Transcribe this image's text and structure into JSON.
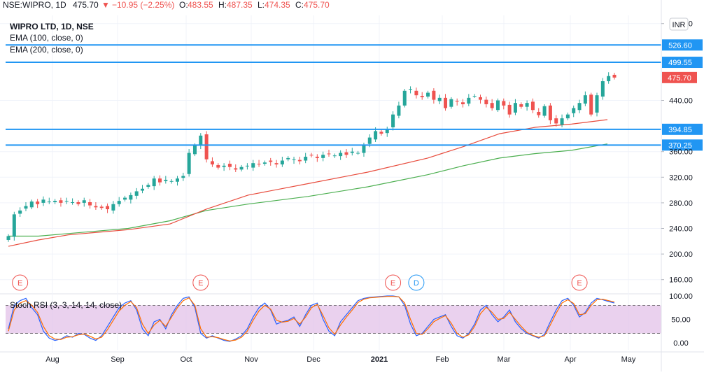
{
  "header": {
    "symbol_line": "NSE:WIPRO, 1D",
    "last": "475.70",
    "change": "−10.95 (−2.25%)",
    "open_label": "O:",
    "open": "483.55",
    "high_label": "H:",
    "high": "487.35",
    "low_label": "L:",
    "low": "474.35",
    "close_label": "C:",
    "close": "475.70"
  },
  "legend": {
    "title": "WIPRO LTD, 1D, NSE",
    "ema100": "EMA (100, close, 0)",
    "ema200": "EMA (200, close, 0)"
  },
  "currency_badge": "INR",
  "oscillator_label": "Stoch RSI (3, 3, 14, 14, close)",
  "colors": {
    "up": "#26a69a",
    "down": "#ef5350",
    "ema100": "#e84c3d",
    "ema200": "#4caf50",
    "hline": "#2196f3",
    "stoch_k": "#2962ff",
    "stoch_d": "#ff6d00",
    "stoch_band": "#e1bee7",
    "event_e": "#ef5350",
    "event_d": "#2196f3"
  },
  "chart_data": [
    {
      "type": "candlestick",
      "y_axis_ticks": [
        "560.00",
        "440.00",
        "360.00",
        "320.00",
        "280.00",
        "240.00",
        "200.00",
        "160.00"
      ],
      "ylim": [
        140,
        575
      ],
      "x_tick_labels": [
        "Aug",
        "Sep",
        "Oct",
        "Nov",
        "Dec",
        "2021",
        "Feb",
        "Mar",
        "Apr",
        "May"
      ],
      "horizontal_levels": [
        {
          "value": 526.6,
          "label": "526.60"
        },
        {
          "value": 499.55,
          "label": "499.55"
        },
        {
          "value": 394.85,
          "label": "394.85"
        },
        {
          "value": 370.25,
          "label": "370.25"
        }
      ],
      "last_price": {
        "value": 475.7,
        "label": "475.70"
      },
      "ohlc_closes_approx": [
        228,
        262,
        268,
        275,
        282,
        278,
        285,
        282,
        283,
        280,
        283,
        281,
        278,
        284,
        276,
        273,
        272,
        270,
        278,
        283,
        288,
        292,
        298,
        302,
        308,
        318,
        312,
        316,
        314,
        318,
        322,
        358,
        370,
        385,
        348,
        340,
        335,
        338,
        336,
        332,
        336,
        338,
        342,
        340,
        343,
        344,
        340,
        346,
        350,
        348,
        345,
        352,
        354,
        350,
        355,
        356,
        354,
        358,
        355,
        360,
        358,
        370,
        382,
        392,
        388,
        395,
        418,
        432,
        455,
        458,
        448,
        445,
        452,
        441,
        444,
        428,
        442,
        438,
        434,
        444,
        447,
        441,
        434,
        428,
        440,
        432,
        418,
        436,
        430,
        436,
        425,
        417,
        431,
        409,
        404,
        412,
        418,
        428,
        436,
        448,
        418,
        448,
        470,
        478,
        475.7
      ],
      "ema_100": [
        [
          0,
          212
        ],
        [
          5,
          222
        ],
        [
          10,
          230
        ],
        [
          20,
          238
        ],
        [
          27,
          247
        ],
        [
          33,
          270
        ],
        [
          40,
          292
        ],
        [
          50,
          310
        ],
        [
          60,
          328
        ],
        [
          70,
          350
        ],
        [
          76,
          368
        ],
        [
          82,
          388
        ],
        [
          88,
          398
        ],
        [
          94,
          403
        ],
        [
          100,
          410
        ]
      ],
      "ema_200": [
        [
          0,
          228
        ],
        [
          5,
          228
        ],
        [
          10,
          232
        ],
        [
          20,
          240
        ],
        [
          27,
          252
        ],
        [
          33,
          268
        ],
        [
          40,
          278
        ],
        [
          50,
          290
        ],
        [
          60,
          305
        ],
        [
          70,
          324
        ],
        [
          76,
          338
        ],
        [
          82,
          350
        ],
        [
          88,
          357
        ],
        [
          94,
          362
        ],
        [
          100,
          372
        ]
      ],
      "events": [
        {
          "label": "E",
          "x_index": 2
        },
        {
          "label": "E",
          "x_index": 33
        },
        {
          "label": "E",
          "x_index": 66
        },
        {
          "label": "D",
          "x_index": 70
        },
        {
          "label": "E",
          "x_index": 98
        }
      ]
    },
    {
      "type": "line",
      "title": "Stoch RSI (3, 3, 14, 14, close)",
      "y_axis_ticks": [
        "100.00",
        "50.00",
        "0.00"
      ],
      "ylim": [
        0,
        100
      ],
      "band": [
        20,
        80
      ],
      "series": [
        {
          "values": [
            30,
            80,
            90,
            95,
            75,
            60,
            25,
            10,
            5,
            8,
            15,
            12,
            20,
            18,
            10,
            5,
            15,
            35,
            55,
            75,
            85,
            90,
            70,
            30,
            15,
            45,
            50,
            30,
            60,
            80,
            95,
            98,
            75,
            20,
            10,
            15,
            10,
            5,
            3,
            8,
            15,
            30,
            55,
            75,
            85,
            70,
            40,
            45,
            48,
            55,
            35,
            60,
            80,
            85,
            50,
            25,
            15,
            45,
            60,
            75,
            90,
            95,
            97,
            98,
            99,
            100,
            100,
            98,
            80,
            40,
            15,
            20,
            35,
            50,
            55,
            60,
            35,
            15,
            10,
            20,
            40,
            70,
            80,
            60,
            45,
            55,
            70,
            45,
            30,
            20,
            15,
            10,
            18,
            45,
            70,
            90,
            95,
            80,
            55,
            65,
            85,
            95,
            92,
            88,
            85
          ]
        },
        {
          "values": [
            25,
            70,
            85,
            90,
            80,
            65,
            35,
            15,
            8,
            7,
            12,
            13,
            17,
            19,
            14,
            8,
            12,
            28,
            48,
            68,
            80,
            88,
            75,
            40,
            20,
            38,
            48,
            35,
            55,
            75,
            90,
            96,
            80,
            30,
            12,
            13,
            11,
            7,
            4,
            6,
            12,
            25,
            48,
            68,
            80,
            72,
            48,
            44,
            46,
            52,
            40,
            55,
            75,
            82,
            58,
            32,
            18,
            38,
            55,
            70,
            86,
            93,
            96,
            97,
            98,
            99,
            99,
            98,
            85,
            50,
            20,
            18,
            30,
            45,
            52,
            58,
            42,
            20,
            12,
            17,
            35,
            62,
            76,
            65,
            50,
            52,
            65,
            50,
            35,
            22,
            16,
            12,
            15,
            38,
            63,
            85,
            92,
            84,
            60,
            62,
            80,
            92,
            93,
            90,
            87
          ]
        }
      ]
    }
  ]
}
